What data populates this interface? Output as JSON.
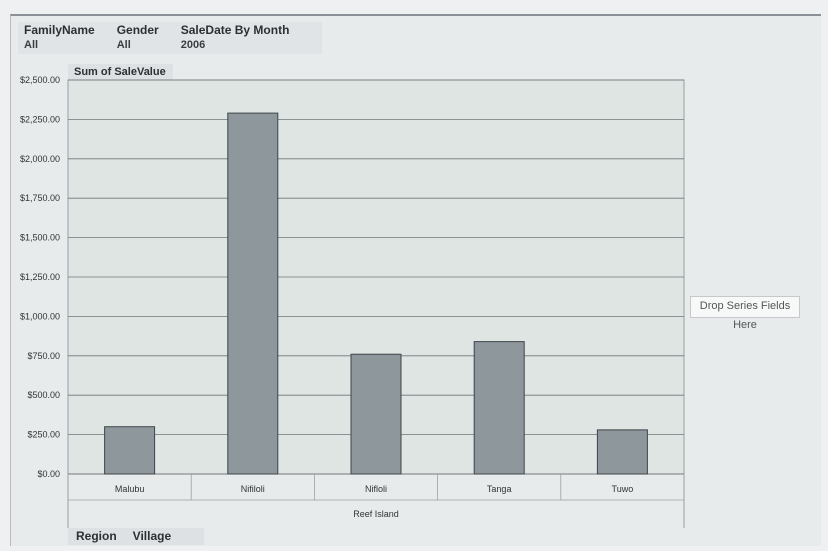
{
  "filters": [
    {
      "name": "FamilyName",
      "value": "All"
    },
    {
      "name": "Gender",
      "value": "All"
    },
    {
      "name": "SaleDate By Month",
      "value": "2006"
    }
  ],
  "measure_label": "Sum of SaleValue",
  "drop_zone_label": "Drop Series Fields Here",
  "row_fields": [
    "Region",
    "Village"
  ],
  "colors": {
    "bar": "#8e979c",
    "bar_border": "#3f4549",
    "grid": "#6f7679",
    "plot_bg": "#dfe5e3"
  },
  "chart_data": {
    "type": "bar",
    "categories": [
      "Malubu",
      "Nifiloli",
      "Nifloli",
      "Tanga",
      "Tuwo"
    ],
    "group_label": "Reef Island",
    "values": [
      300,
      2290,
      760,
      840,
      280
    ],
    "yticks": [
      "$0.00",
      "$250.00",
      "$500.00",
      "$750.00",
      "$1,000.00",
      "$1,250.00",
      "$1,500.00",
      "$1,750.00",
      "$2,000.00",
      "$2,250.00",
      "$2,500.00"
    ],
    "ylim": [
      0,
      2500
    ],
    "grid": true
  }
}
